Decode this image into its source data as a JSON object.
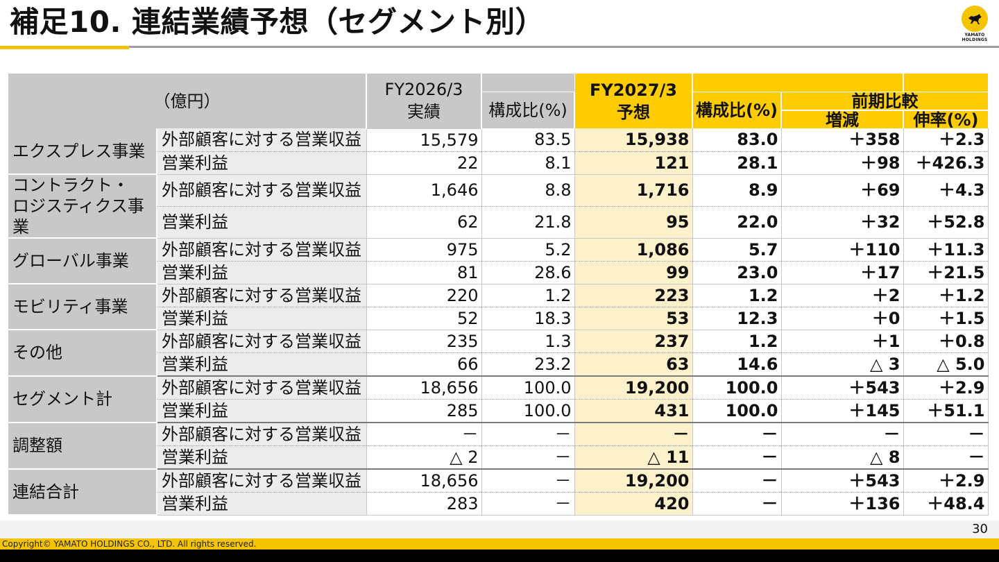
{
  "title": "補足10. 連結業績予想（セグメント別）",
  "logo": {
    "text_line1": "YAMATO",
    "text_line2": "HOLDINGS"
  },
  "header": {
    "unit": "（億円）",
    "fy2026": "FY2026/3\n実績",
    "share1": "構成比(%)",
    "fy2027": "FY2027/3\n予想",
    "share2": "構成比(%)",
    "comparison": "前期比較",
    "change": "増減",
    "growth": "伸率(%)"
  },
  "rows": [
    {
      "segment": "エクスプレス事業",
      "lines": [
        {
          "label": "外部顧客に対する営業収益",
          "fy2026": "15,579",
          "share1": "83.5",
          "fy2027": "15,938",
          "share2": "83.0",
          "change": "＋358",
          "growth": "＋2.3"
        },
        {
          "label": "営業利益",
          "fy2026": "22",
          "share1": "8.1",
          "fy2027": "121",
          "share2": "28.1",
          "change": "＋98",
          "growth": "＋426.3"
        }
      ]
    },
    {
      "segment": "コントラクト・\nロジスティクス事業",
      "lines": [
        {
          "label": "外部顧客に対する営業収益",
          "fy2026": "1,646",
          "share1": "8.8",
          "fy2027": "1,716",
          "share2": "8.9",
          "change": "＋69",
          "growth": "＋4.3"
        },
        {
          "label": "営業利益",
          "fy2026": "62",
          "share1": "21.8",
          "fy2027": "95",
          "share2": "22.0",
          "change": "＋32",
          "growth": "＋52.8"
        }
      ]
    },
    {
      "segment": "グローバル事業",
      "lines": [
        {
          "label": "外部顧客に対する営業収益",
          "fy2026": "975",
          "share1": "5.2",
          "fy2027": "1,086",
          "share2": "5.7",
          "change": "＋110",
          "growth": "＋11.3"
        },
        {
          "label": "営業利益",
          "fy2026": "81",
          "share1": "28.6",
          "fy2027": "99",
          "share2": "23.0",
          "change": "＋17",
          "growth": "＋21.5"
        }
      ]
    },
    {
      "segment": "モビリティ事業",
      "lines": [
        {
          "label": "外部顧客に対する営業収益",
          "fy2026": "220",
          "share1": "1.2",
          "fy2027": "223",
          "share2": "1.2",
          "change": "＋2",
          "growth": "＋1.2"
        },
        {
          "label": "営業利益",
          "fy2026": "52",
          "share1": "18.3",
          "fy2027": "53",
          "share2": "12.3",
          "change": "＋0",
          "growth": "＋1.5"
        }
      ]
    },
    {
      "segment": "その他",
      "lines": [
        {
          "label": "外部顧客に対する営業収益",
          "fy2026": "235",
          "share1": "1.3",
          "fy2027": "237",
          "share2": "1.2",
          "change": "＋1",
          "growth": "＋0.8"
        },
        {
          "label": "営業利益",
          "fy2026": "66",
          "share1": "23.2",
          "fy2027": "63",
          "share2": "14.6",
          "change": "△ 3",
          "growth": "△ 5.0"
        }
      ]
    },
    {
      "segment": "セグメント計",
      "lines": [
        {
          "label": "外部顧客に対する営業収益",
          "fy2026": "18,656",
          "share1": "100.0",
          "fy2027": "19,200",
          "share2": "100.0",
          "change": "＋543",
          "growth": "＋2.9"
        },
        {
          "label": "営業利益",
          "fy2026": "285",
          "share1": "100.0",
          "fy2027": "431",
          "share2": "100.0",
          "change": "＋145",
          "growth": "＋51.1"
        }
      ]
    },
    {
      "segment": "調整額",
      "lines": [
        {
          "label": "外部顧客に対する営業収益",
          "fy2026": "－",
          "share1": "－",
          "fy2027": "－",
          "share2": "－",
          "change": "－",
          "growth": "－"
        },
        {
          "label": "営業利益",
          "fy2026": "△ 2",
          "share1": "－",
          "fy2027": "△ 11",
          "share2": "－",
          "change": "△ 8",
          "growth": "－"
        }
      ]
    },
    {
      "segment": "連結合計",
      "lines": [
        {
          "label": "外部顧客に対する営業収益",
          "fy2026": "18,656",
          "share1": "－",
          "fy2027": "19,200",
          "share2": "－",
          "change": "＋543",
          "growth": "＋2.9"
        },
        {
          "label": "営業利益",
          "fy2026": "283",
          "share1": "－",
          "fy2027": "420",
          "share2": "－",
          "change": "＋136",
          "growth": "＋48.4"
        }
      ]
    }
  ],
  "page_number": "30",
  "footer": "Copyright© YAMATO HOLDINGS CO., LTD. All rights reserved."
}
